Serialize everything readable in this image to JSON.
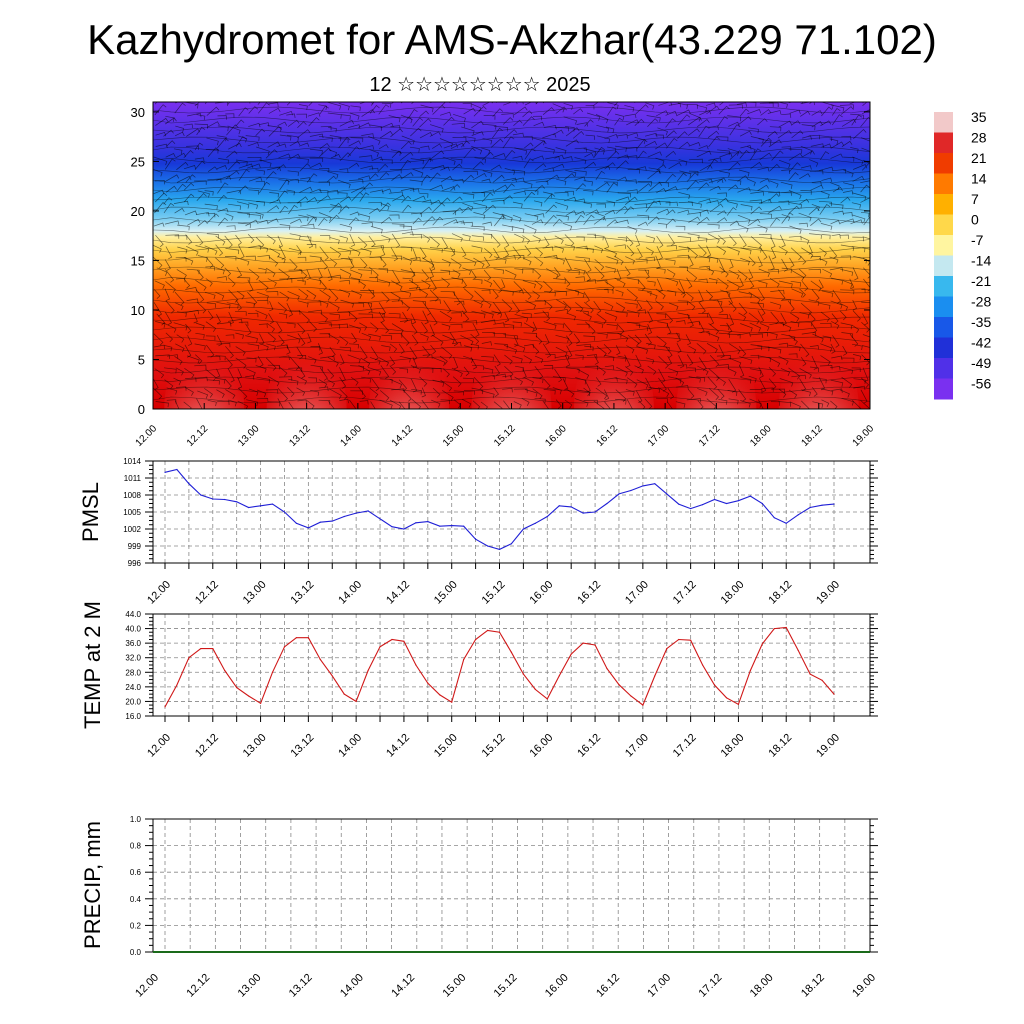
{
  "title": "Kazhydromet for AMS-Akzhar(43.229 71.102)",
  "subtitle": "12 ☆☆☆☆☆☆☆☆ 2025",
  "chart_data": [
    {
      "type": "heatmap",
      "name": "cross-section",
      "x_tick_labels": [
        "12.00",
        "12.12",
        "13.00",
        "13.12",
        "14.00",
        "14.12",
        "15.00",
        "15.12",
        "16.00",
        "16.12",
        "17.00",
        "17.12",
        "18.00",
        "18.12",
        "19.00"
      ],
      "y_ticks": [
        0,
        5,
        10,
        15,
        20,
        25,
        30
      ],
      "ylim": [
        0,
        31
      ],
      "colorbar_labels": [
        "35",
        "28",
        "21",
        "14",
        "7",
        "0",
        "-7",
        "-14",
        "-21",
        "-28",
        "-35",
        "-42",
        "-49",
        "-56"
      ],
      "colorbar_colors": [
        "#f2c9c9",
        "#e02828",
        "#f03c00",
        "#ff7a00",
        "#ffb000",
        "#ffd84a",
        "#fff5a0",
        "#c4e8f0",
        "#38b8ee",
        "#1a8ef0",
        "#1858e8",
        "#2030d8",
        "#5030e8",
        "#7a30f0"
      ]
    },
    {
      "type": "line",
      "name": "PMSL",
      "ylabel": "PMSL",
      "ylim": [
        996,
        1014
      ],
      "y_ticks": [
        996,
        999,
        1002,
        1005,
        1008,
        1011,
        1014
      ],
      "x_tick_labels": [
        "12.00",
        "12.12",
        "13.00",
        "13.12",
        "14.00",
        "14.12",
        "15.00",
        "15.12",
        "16.00",
        "16.12",
        "17.00",
        "17.12",
        "18.00",
        "18.12",
        "19.00"
      ],
      "x": [
        0,
        1,
        2,
        3,
        4,
        5,
        6,
        7,
        8,
        9,
        10,
        11,
        12,
        13,
        14,
        15,
        16,
        17,
        18,
        19,
        20,
        21,
        22,
        23,
        24,
        25,
        26,
        27,
        28,
        29,
        30,
        31,
        32,
        33,
        34,
        35,
        36,
        37,
        38,
        39,
        40,
        41,
        42,
        43,
        44,
        45,
        46,
        47,
        48,
        49,
        50,
        51,
        52,
        53,
        54,
        55,
        56
      ],
      "values": [
        1012,
        1012.5,
        1010,
        1008,
        1007.3,
        1007.2,
        1006.8,
        1005.8,
        1006.1,
        1006.4,
        1005,
        1003,
        1002.2,
        1003.2,
        1003.4,
        1004.2,
        1004.8,
        1005.2,
        1003.8,
        1002.4,
        1002,
        1003.1,
        1003.3,
        1002.5,
        1002.6,
        1002.5,
        1000.2,
        999,
        998.4,
        999.4,
        1002,
        1003,
        1004.2,
        1006.1,
        1005.9,
        1004.8,
        1005,
        1006.5,
        1008.2,
        1008.8,
        1009.6,
        1010,
        1008.2,
        1006.4,
        1005.6,
        1006.3,
        1007.2,
        1006.5,
        1007,
        1007.8,
        1006.5,
        1004,
        1003,
        1004.5,
        1005.8,
        1006.2,
        1006.4
      ],
      "color": "#1f1fd6"
    },
    {
      "type": "line",
      "name": "TEMP at 2 M",
      "ylabel": "TEMP at 2 M",
      "ylim": [
        16,
        44
      ],
      "y_ticks": [
        "16.0",
        "20.0",
        "24.0",
        "28.0",
        "32.0",
        "36.0",
        "40.0",
        "44.0"
      ],
      "x_tick_labels": [
        "12.00",
        "12.12",
        "13.00",
        "13.12",
        "14.00",
        "14.12",
        "15.00",
        "15.12",
        "16.00",
        "16.12",
        "17.00",
        "17.12",
        "18.00",
        "18.12",
        "19.00"
      ],
      "x": [
        0,
        1,
        2,
        3,
        4,
        5,
        6,
        7,
        8,
        9,
        10,
        11,
        12,
        13,
        14,
        15,
        16,
        17,
        18,
        19,
        20,
        21,
        22,
        23,
        24,
        25,
        26,
        27,
        28,
        29,
        30,
        31,
        32,
        33,
        34,
        35,
        36,
        37,
        38,
        39,
        40,
        41,
        42,
        43,
        44,
        45,
        46,
        47,
        48,
        49,
        50,
        51,
        52,
        53,
        54,
        55,
        56
      ],
      "values": [
        18.5,
        24.5,
        32,
        34.5,
        34.5,
        28.5,
        23.8,
        21.5,
        19.5,
        28,
        35,
        37.5,
        37.5,
        31.5,
        27,
        22,
        20,
        28.5,
        35,
        37,
        36.5,
        30,
        25,
        21.8,
        19.8,
        31.5,
        37,
        39.5,
        39,
        33.5,
        27.5,
        23.3,
        20.7,
        27,
        33,
        36,
        35.5,
        29,
        24.6,
        21.5,
        19,
        27,
        34.5,
        37,
        36.8,
        30,
        24.5,
        21,
        19.2,
        28.5,
        35.8,
        40,
        40.3,
        34,
        27.5,
        25.8,
        22
      ],
      "color": "#d01818"
    },
    {
      "type": "bar",
      "name": "PRECIP, mm",
      "ylabel": "PRECIP, mm",
      "ylim": [
        0,
        1
      ],
      "y_ticks": [
        "0.0",
        "0.2",
        "0.4",
        "0.6",
        "0.8",
        "1.0"
      ],
      "x_tick_labels": [
        "12.00",
        "12.12",
        "13.00",
        "13.12",
        "14.00",
        "14.12",
        "15.00",
        "15.12",
        "16.00",
        "16.12",
        "17.00",
        "17.12",
        "18.00",
        "18.12",
        "19.00"
      ],
      "values": [
        0,
        0,
        0,
        0,
        0,
        0,
        0,
        0,
        0,
        0,
        0,
        0,
        0,
        0,
        0,
        0,
        0,
        0,
        0,
        0,
        0,
        0,
        0,
        0,
        0,
        0,
        0,
        0,
        0,
        0,
        0,
        0,
        0,
        0,
        0,
        0,
        0,
        0,
        0,
        0,
        0,
        0,
        0,
        0,
        0,
        0,
        0,
        0,
        0,
        0,
        0,
        0,
        0,
        0,
        0,
        0,
        0
      ],
      "color": "#1a6a1a"
    }
  ]
}
